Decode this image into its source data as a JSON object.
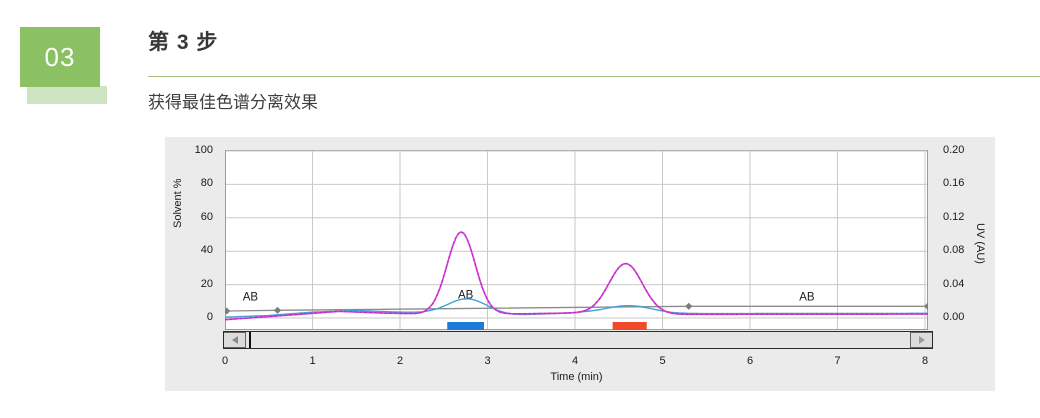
{
  "step_badge": {
    "number": "03"
  },
  "header": {
    "title": "第 3 步",
    "subtitle": "获得最佳色谱分离效果"
  },
  "colors": {
    "badge_green": "#8cc163",
    "badge_green_light": "#cfe4c3",
    "divider_green": "#a4bc7e",
    "panel_bg": "#ebebeb",
    "plot_bg": "#ffffff",
    "grid": "#c9c9c9",
    "plot_border": "#9a9a9a",
    "magenta": "#da3fd0",
    "magenta_dash": "#a428c8",
    "cyan": "#3fa0d6",
    "gray_line": "#8c8c8c",
    "bar_blue": "#1e7ad6",
    "bar_red": "#f04a2a",
    "text": "#1a1a1a"
  },
  "chart_data": {
    "type": "line",
    "xlabel": "Time (min)",
    "x_range": [
      0,
      8.06
    ],
    "x_ticks": [
      0,
      1,
      2,
      3,
      4,
      5,
      6,
      7,
      8
    ],
    "left_axis": {
      "label": "Solvent %",
      "range": [
        0,
        100
      ],
      "ticks": [
        0,
        20,
        40,
        60,
        80,
        100
      ]
    },
    "right_axis": {
      "label": "UV (AU)",
      "range": [
        0,
        0.2
      ],
      "ticks": [
        "0.00",
        "0.04",
        "0.08",
        "0.12",
        "0.16",
        "0.20"
      ]
    },
    "grid": true,
    "series": [
      {
        "name": "uv-trace-magenta",
        "color_key": "magenta",
        "baseline_points": [
          [
            0,
            -1
          ],
          [
            0.4,
            0.5
          ],
          [
            0.8,
            2
          ],
          [
            1.3,
            4
          ],
          [
            1.8,
            3
          ],
          [
            2.2,
            2.5
          ],
          [
            3.4,
            2.5
          ],
          [
            4.0,
            3
          ],
          [
            5.2,
            2.2
          ],
          [
            8.06,
            2.4
          ]
        ],
        "peaks": [
          {
            "center_min": 2.7,
            "height_pct": 49,
            "sigma": 0.16,
            "apex_uv_au": 0.104
          },
          {
            "center_min": 4.58,
            "height_pct": 30,
            "sigma": 0.19,
            "apex_uv_au": 0.066
          }
        ]
      },
      {
        "name": "secondary-trace-cyan",
        "color_key": "cyan",
        "baseline_points": [
          [
            0,
            0.5
          ],
          [
            0.5,
            1.5
          ],
          [
            1.0,
            3.5
          ],
          [
            1.5,
            4.5
          ],
          [
            2.0,
            3.5
          ],
          [
            2.4,
            3.0
          ],
          [
            3.3,
            1.8
          ],
          [
            4.1,
            3.2
          ],
          [
            5.1,
            2.6
          ],
          [
            8.06,
            2.8
          ]
        ],
        "peaks": [
          {
            "center_min": 2.77,
            "height_pct": 9,
            "sigma": 0.22,
            "apex_uv_au": 0.024
          },
          {
            "center_min": 4.62,
            "height_pct": 4.5,
            "sigma": 0.26,
            "apex_uv_au": 0.014
          }
        ]
      },
      {
        "name": "gradient-line-gray",
        "color_key": "gray_line",
        "points": [
          [
            0.02,
            4.2
          ],
          [
            0.6,
            4.6
          ],
          [
            5.3,
            7.0
          ],
          [
            8.03,
            7.0
          ]
        ],
        "markers": [
          [
            0.02,
            4.2
          ],
          [
            0.6,
            4.6
          ],
          [
            5.3,
            7.0
          ],
          [
            8.03,
            7.0
          ]
        ],
        "labels": [
          {
            "text": "AB",
            "x_min": 0.29,
            "y_pct": 13
          },
          {
            "text": "AB",
            "x_min": 2.75,
            "y_pct": 14
          },
          {
            "text": "AB",
            "x_min": 6.65,
            "y_pct": 13
          }
        ]
      }
    ],
    "fraction_bars": [
      {
        "color_key": "bar_blue",
        "x0_min": 2.54,
        "x1_min": 2.96
      },
      {
        "color_key": "bar_red",
        "x0_min": 4.43,
        "x1_min": 4.82
      }
    ]
  }
}
